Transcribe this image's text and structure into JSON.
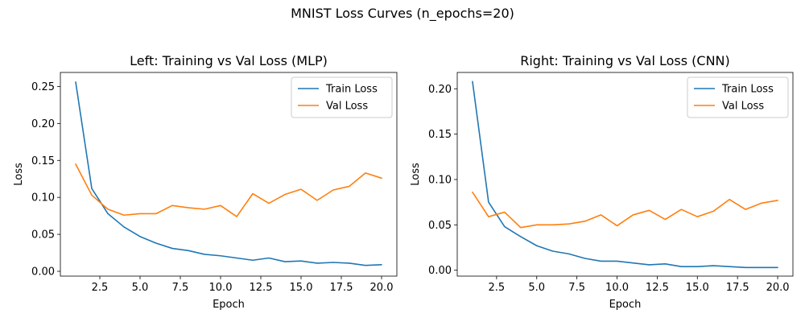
{
  "figure": {
    "suptitle": "MNIST Loss Curves (n_epochs=20)"
  },
  "colors": {
    "train": "#1f77b4",
    "val": "#ff7f0e"
  },
  "chart_data": [
    {
      "type": "line",
      "title": "Left: Training vs Val Loss (MLP)",
      "xlabel": "Epoch",
      "ylabel": "Loss",
      "xlim": [
        0.05,
        20.95
      ],
      "ylim": [
        -0.0065,
        0.269
      ],
      "xticks": [
        2.5,
        5.0,
        7.5,
        10.0,
        12.5,
        15.0,
        17.5,
        20.0
      ],
      "xtick_labels": [
        "2.5",
        "5.0",
        "7.5",
        "10.0",
        "12.5",
        "15.0",
        "17.5",
        "20.0"
      ],
      "yticks": [
        0.0,
        0.05,
        0.1,
        0.15,
        0.2,
        0.25
      ],
      "ytick_labels": [
        "0.00",
        "0.05",
        "0.10",
        "0.15",
        "0.20",
        "0.25"
      ],
      "legend_position": "top-right",
      "x": [
        1,
        2,
        3,
        4,
        5,
        6,
        7,
        8,
        9,
        10,
        11,
        12,
        13,
        14,
        15,
        16,
        17,
        18,
        19,
        20
      ],
      "series": [
        {
          "name": "Train Loss",
          "color": "#1f77b4",
          "values": [
            0.256,
            0.112,
            0.078,
            0.06,
            0.047,
            0.038,
            0.031,
            0.028,
            0.023,
            0.021,
            0.018,
            0.015,
            0.018,
            0.013,
            0.014,
            0.011,
            0.012,
            0.011,
            0.008,
            0.009
          ]
        },
        {
          "name": "Val Loss",
          "color": "#ff7f0e",
          "values": [
            0.145,
            0.103,
            0.084,
            0.076,
            0.078,
            0.078,
            0.089,
            0.086,
            0.084,
            0.089,
            0.074,
            0.105,
            0.092,
            0.104,
            0.111,
            0.096,
            0.11,
            0.115,
            0.133,
            0.126
          ]
        }
      ]
    },
    {
      "type": "line",
      "title": "Right: Training vs Val Loss (CNN)",
      "xlabel": "Epoch",
      "ylabel": "Loss",
      "xlim": [
        0.05,
        20.95
      ],
      "ylim": [
        -0.0065,
        0.218
      ],
      "xticks": [
        2.5,
        5.0,
        7.5,
        10.0,
        12.5,
        15.0,
        17.5,
        20.0
      ],
      "xtick_labels": [
        "2.5",
        "5.0",
        "7.5",
        "10.0",
        "12.5",
        "15.0",
        "17.5",
        "20.0"
      ],
      "yticks": [
        0.0,
        0.05,
        0.1,
        0.15,
        0.2
      ],
      "ytick_labels": [
        "0.00",
        "0.05",
        "0.10",
        "0.15",
        "0.20"
      ],
      "legend_position": "top-right",
      "x": [
        1,
        2,
        3,
        4,
        5,
        6,
        7,
        8,
        9,
        10,
        11,
        12,
        13,
        14,
        15,
        16,
        17,
        18,
        19,
        20
      ],
      "series": [
        {
          "name": "Train Loss",
          "color": "#1f77b4",
          "values": [
            0.208,
            0.075,
            0.048,
            0.037,
            0.027,
            0.021,
            0.018,
            0.013,
            0.01,
            0.01,
            0.008,
            0.006,
            0.007,
            0.004,
            0.004,
            0.005,
            0.004,
            0.003,
            0.003,
            0.003
          ]
        },
        {
          "name": "Val Loss",
          "color": "#ff7f0e",
          "values": [
            0.086,
            0.059,
            0.064,
            0.047,
            0.05,
            0.05,
            0.051,
            0.054,
            0.061,
            0.049,
            0.061,
            0.066,
            0.056,
            0.067,
            0.059,
            0.065,
            0.078,
            0.067,
            0.074,
            0.077
          ]
        }
      ]
    }
  ]
}
